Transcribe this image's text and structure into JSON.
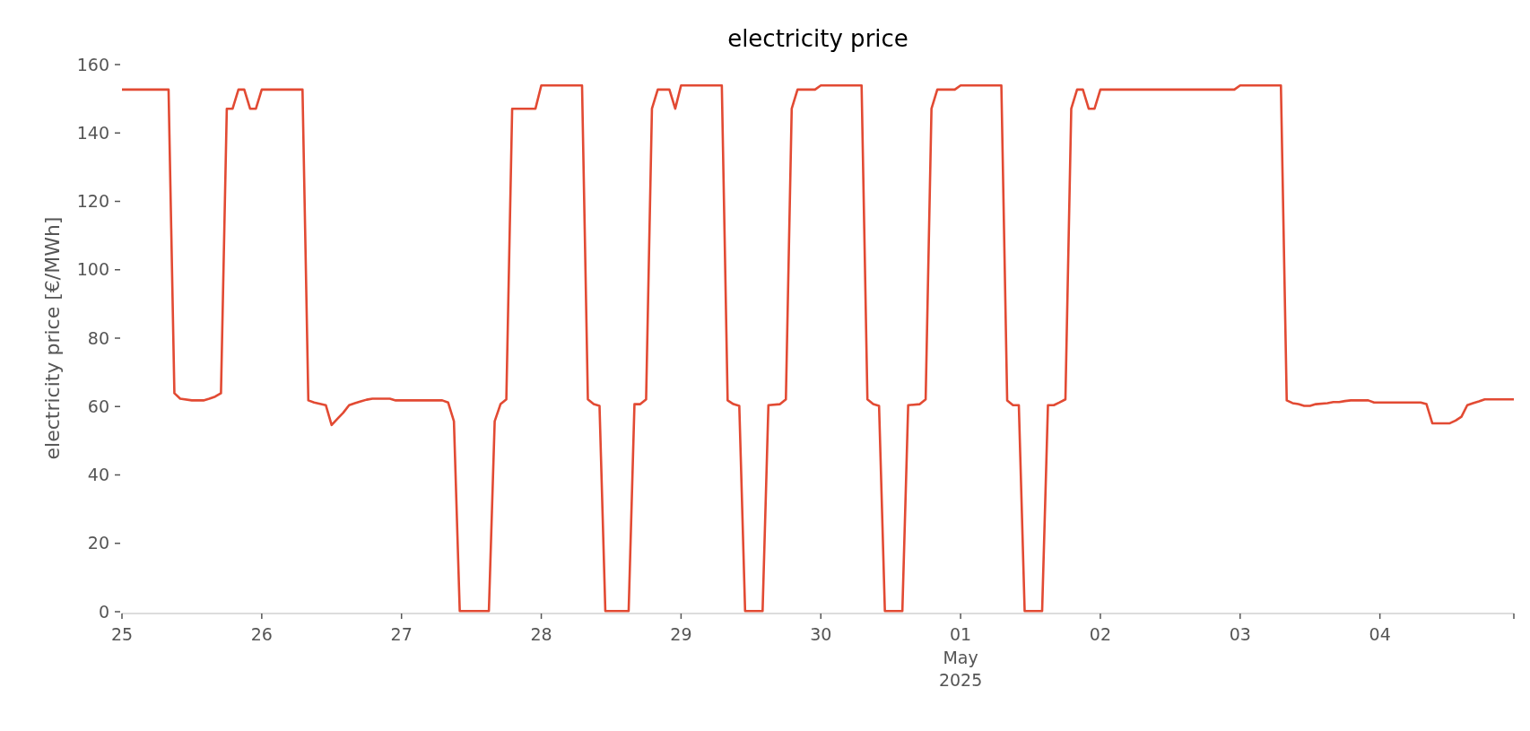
{
  "chart_data": {
    "type": "line",
    "title": "electricity price",
    "ylabel": "electricity price [€/MWh]",
    "xlim": [
      "2025-04-25T00:00",
      "2025-05-04T23:00"
    ],
    "xticks": [
      {
        "value": "2025-04-25T00:00",
        "label": "25"
      },
      {
        "value": "2025-04-26T00:00",
        "label": "26"
      },
      {
        "value": "2025-04-27T00:00",
        "label": "27"
      },
      {
        "value": "2025-04-28T00:00",
        "label": "28"
      },
      {
        "value": "2025-04-29T00:00",
        "label": "29"
      },
      {
        "value": "2025-04-30T00:00",
        "label": "30"
      },
      {
        "value": "2025-05-01T00:00",
        "label": "01\nMay\n2025"
      },
      {
        "value": "2025-05-02T00:00",
        "label": "02"
      },
      {
        "value": "2025-05-03T00:00",
        "label": "03"
      },
      {
        "value": "2025-05-04T00:00",
        "label": "04"
      },
      {
        "value": "2025-05-04T23:00",
        "label": null
      }
    ],
    "ylim": [
      0,
      160
    ],
    "yticks": [
      0,
      20,
      40,
      60,
      80,
      100,
      120,
      140,
      160
    ],
    "grid": false,
    "series": [
      {
        "color": "#e24a33",
        "x": [
          "2025-04-25T00:00",
          "2025-04-25T08:00",
          "2025-04-25T09:00",
          "2025-04-25T10:00",
          "2025-04-25T12:00",
          "2025-04-25T14:00",
          "2025-04-25T15:00",
          "2025-04-25T16:00",
          "2025-04-25T17:00",
          "2025-04-25T18:00",
          "2025-04-25T19:00",
          "2025-04-25T20:00",
          "2025-04-25T21:00",
          "2025-04-25T22:00",
          "2025-04-25T23:00",
          "2025-04-26T00:00",
          "2025-04-26T07:00",
          "2025-04-26T08:00",
          "2025-04-26T09:00",
          "2025-04-26T11:00",
          "2025-04-26T12:00",
          "2025-04-26T13:00",
          "2025-04-26T14:00",
          "2025-04-26T15:00",
          "2025-04-26T16:00",
          "2025-04-26T17:00",
          "2025-04-26T18:00",
          "2025-04-26T19:00",
          "2025-04-26T22:00",
          "2025-04-26T23:00",
          "2025-04-27T07:00",
          "2025-04-27T08:00",
          "2025-04-27T09:00",
          "2025-04-27T10:00",
          "2025-04-27T15:00",
          "2025-04-27T16:00",
          "2025-04-27T17:00",
          "2025-04-27T18:00",
          "2025-04-27T19:00",
          "2025-04-27T23:00",
          "2025-04-28T00:00",
          "2025-04-28T07:00",
          "2025-04-28T08:00",
          "2025-04-28T09:00",
          "2025-04-28T10:00",
          "2025-04-28T11:00",
          "2025-04-28T15:00",
          "2025-04-28T16:00",
          "2025-04-28T17:00",
          "2025-04-28T18:00",
          "2025-04-28T19:00",
          "2025-04-28T20:00",
          "2025-04-28T22:00",
          "2025-04-28T23:00",
          "2025-04-29T00:00",
          "2025-04-29T07:00",
          "2025-04-29T08:00",
          "2025-04-29T09:00",
          "2025-04-29T10:00",
          "2025-04-29T11:00",
          "2025-04-29T14:00",
          "2025-04-29T15:00",
          "2025-04-29T17:00",
          "2025-04-29T18:00",
          "2025-04-29T19:00",
          "2025-04-29T20:00",
          "2025-04-29T23:00",
          "2025-04-30T00:00",
          "2025-04-30T07:00",
          "2025-04-30T08:00",
          "2025-04-30T09:00",
          "2025-04-30T10:00",
          "2025-04-30T11:00",
          "2025-04-30T14:00",
          "2025-04-30T15:00",
          "2025-04-30T17:00",
          "2025-04-30T18:00",
          "2025-04-30T19:00",
          "2025-04-30T20:00",
          "2025-04-30T23:00",
          "2025-05-01T00:00",
          "2025-05-01T07:00",
          "2025-05-01T08:00",
          "2025-05-01T09:00",
          "2025-05-01T10:00",
          "2025-05-01T11:00",
          "2025-05-01T14:00",
          "2025-05-01T15:00",
          "2025-05-01T16:00",
          "2025-05-01T17:00",
          "2025-05-01T18:00",
          "2025-05-01T19:00",
          "2025-05-01T20:00",
          "2025-05-01T21:00",
          "2025-05-01T22:00",
          "2025-05-01T23:00",
          "2025-05-02T00:00",
          "2025-05-02T23:00",
          "2025-05-03T00:00",
          "2025-05-03T07:00",
          "2025-05-03T08:00",
          "2025-05-03T09:00",
          "2025-05-03T10:00",
          "2025-05-03T11:00",
          "2025-05-03T12:00",
          "2025-05-03T13:00",
          "2025-05-03T15:00",
          "2025-05-03T16:00",
          "2025-05-03T17:00",
          "2025-05-03T18:00",
          "2025-05-03T19:00",
          "2025-05-03T22:00",
          "2025-05-03T23:00",
          "2025-05-04T07:00",
          "2025-05-04T08:00",
          "2025-05-04T09:00",
          "2025-05-04T12:00",
          "2025-05-04T13:00",
          "2025-05-04T14:00",
          "2025-05-04T15:00",
          "2025-05-04T16:00",
          "2025-05-04T17:00",
          "2025-05-04T18:00",
          "2025-05-04T23:00"
        ],
        "values": [
          152.7,
          152.7,
          63.9,
          62.3,
          61.8,
          61.8,
          62.3,
          62.9,
          63.9,
          147.1,
          147.1,
          152.7,
          152.7,
          147.1,
          147.1,
          152.7,
          152.7,
          61.8,
          61.2,
          60.4,
          54.6,
          56.4,
          58.2,
          60.4,
          61.0,
          61.5,
          62.0,
          62.3,
          62.3,
          61.8,
          61.8,
          61.2,
          55.7,
          0.2,
          0.2,
          55.7,
          60.7,
          62.1,
          147.1,
          147.1,
          153.9,
          153.9,
          62.1,
          60.7,
          60.2,
          0.2,
          0.2,
          60.7,
          60.7,
          62.1,
          147.1,
          152.7,
          152.7,
          147.1,
          153.9,
          153.9,
          61.8,
          60.7,
          60.2,
          0.2,
          0.2,
          60.4,
          60.7,
          62.1,
          147.1,
          152.7,
          152.7,
          153.9,
          153.9,
          62.1,
          60.7,
          60.2,
          0.2,
          0.2,
          60.4,
          60.7,
          62.1,
          147.1,
          152.7,
          152.7,
          153.9,
          153.9,
          61.8,
          60.4,
          60.4,
          0.2,
          0.2,
          60.4,
          60.4,
          61.2,
          62.1,
          147.1,
          152.7,
          152.7,
          147.1,
          147.1,
          152.7,
          152.7,
          153.9,
          153.9,
          61.8,
          61.0,
          60.7,
          60.2,
          60.2,
          60.7,
          61.0,
          61.3,
          61.3,
          61.6,
          61.8,
          61.8,
          61.2,
          61.2,
          60.7,
          55.1,
          55.1,
          55.9,
          57.0,
          60.4,
          61.0,
          61.5,
          62.1,
          62.1
        ]
      }
    ]
  }
}
